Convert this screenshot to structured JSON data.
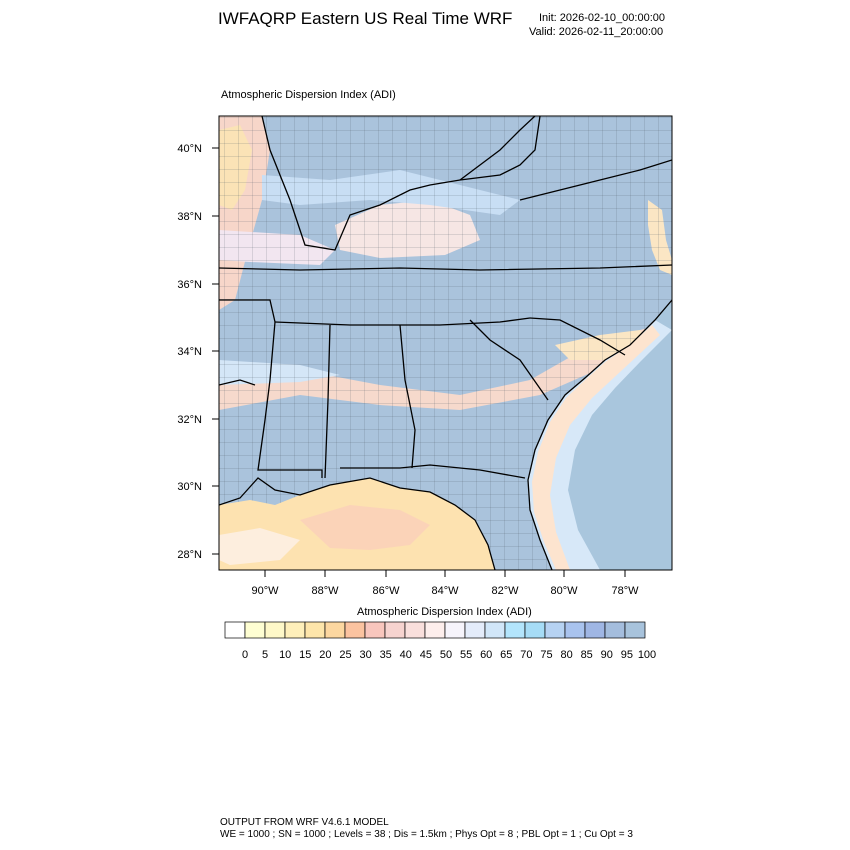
{
  "header": {
    "title": "IWFAQRP Eastern US Real Time WRF",
    "init": "Init: 2026-02-10_00:00:00",
    "valid": "Valid: 2026-02-11_20:00:00"
  },
  "map": {
    "subtitle": "Atmospheric Dispersion Index   (ADI)",
    "lat_labels": [
      "40°N",
      "38°N",
      "36°N",
      "34°N",
      "32°N",
      "30°N",
      "28°N"
    ],
    "lon_labels": [
      "90°W",
      "88°W",
      "86°W",
      "84°W",
      "82°W",
      "80°W",
      "78°W"
    ],
    "colors": {
      "water": "#a9c6dd",
      "land_high": "#aac3dc",
      "gulf": "#fde2b0"
    }
  },
  "colorbar": {
    "title": "Atmospheric Dispersion Index  (ADI)",
    "labels": [
      "0",
      "5",
      "10",
      "15",
      "20",
      "25",
      "30",
      "35",
      "40",
      "45",
      "50",
      "55",
      "60",
      "65",
      "70",
      "75",
      "80",
      "85",
      "90",
      "95",
      "100"
    ],
    "colors": [
      "#ffffff",
      "#fefed2",
      "#fef8c8",
      "#feefba",
      "#fde5aa",
      "#fcd7a0",
      "#fbc3a0",
      "#f8c6bd",
      "#f6d3cf",
      "#f9dfdc",
      "#fdeeec",
      "#f6f4fb",
      "#e4ecfa",
      "#d1e6f8",
      "#b3e5fc",
      "#a6dcf6",
      "#b6d2f2",
      "#a9c3ee",
      "#9fb6e4",
      "#a4bddd",
      "#a8c3dc"
    ]
  },
  "footer": {
    "line1": "OUTPUT FROM WRF V4.6.1 MODEL",
    "line2": "WE = 1000 ; SN = 1000 ; Levels = 38 ; Dis = 1.5km ; Phys Opt = 8 ; PBL Opt = 1 ; Cu Opt = 3"
  }
}
